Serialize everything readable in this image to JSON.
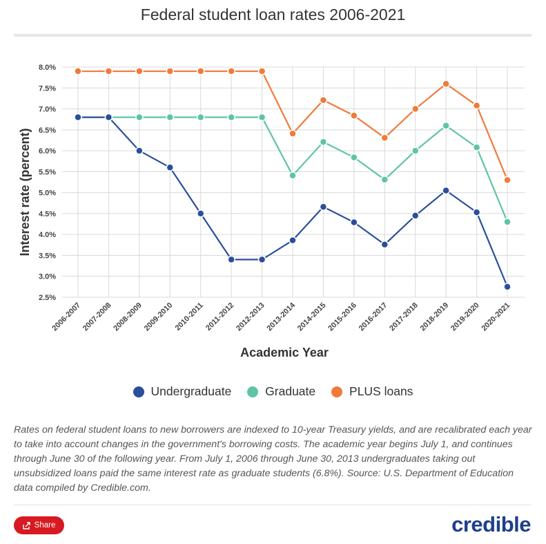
{
  "title": "Federal student loan rates 2006-2021",
  "chart_data": {
    "type": "line",
    "categories": [
      "2006-2007",
      "2007-2008",
      "2008-2009",
      "2009-2010",
      "2010-2011",
      "2011-2012",
      "2012-2013",
      "2013-2014",
      "2014-2015",
      "2015-2016",
      "2016-2017",
      "2017-2018",
      "2018-2019",
      "2019-2020",
      "2020-2021"
    ],
    "yticks": [
      "8.0%",
      "7.5%",
      "7.0%",
      "6.5%",
      "6.0%",
      "5.5%",
      "5.0%",
      "4.5%",
      "4.0%",
      "3.5%",
      "3.0%",
      "2.5%"
    ],
    "ylim": [
      2.5,
      8.0
    ],
    "xlabel": "Academic Year",
    "ylabel": "Interest rate (percent)",
    "series": [
      {
        "name": "Undergraduate",
        "color": "#2a4f9a",
        "values": [
          6.8,
          6.8,
          6.0,
          5.6,
          4.5,
          3.4,
          3.4,
          3.86,
          4.66,
          4.29,
          3.76,
          4.45,
          5.05,
          4.53,
          2.75
        ]
      },
      {
        "name": "Graduate",
        "color": "#5ec4a5",
        "values": [
          6.8,
          6.8,
          6.8,
          6.8,
          6.8,
          6.8,
          6.8,
          5.41,
          6.21,
          5.84,
          5.31,
          6.0,
          6.6,
          6.08,
          4.3
        ]
      },
      {
        "name": "PLUS loans",
        "color": "#ef7b3b",
        "values": [
          7.9,
          7.9,
          7.9,
          7.9,
          7.9,
          7.9,
          7.9,
          6.41,
          7.21,
          6.84,
          6.31,
          7.0,
          7.6,
          7.08,
          5.3
        ]
      }
    ]
  },
  "legend": [
    {
      "label": "Undergraduate",
      "color": "#2a4f9a"
    },
    {
      "label": "Graduate",
      "color": "#5ec4a5"
    },
    {
      "label": "PLUS loans",
      "color": "#ef7b3b"
    }
  ],
  "caption": "Rates on federal student loans to new borrowers are indexed to 10-year Treasury yields, and are recalibrated each year to take into account changes in the government's borrowing costs. The academic year begins July 1, and continues through June 30 of the following year. From July 1, 2006 through June 30, 2013 undergraduates taking out unsubsidized loans paid the same interest rate as graduate students (6.8%). Source: U.S. Department of Education data compiled by Credible.com.",
  "share_label": "Share",
  "brand": "credible"
}
